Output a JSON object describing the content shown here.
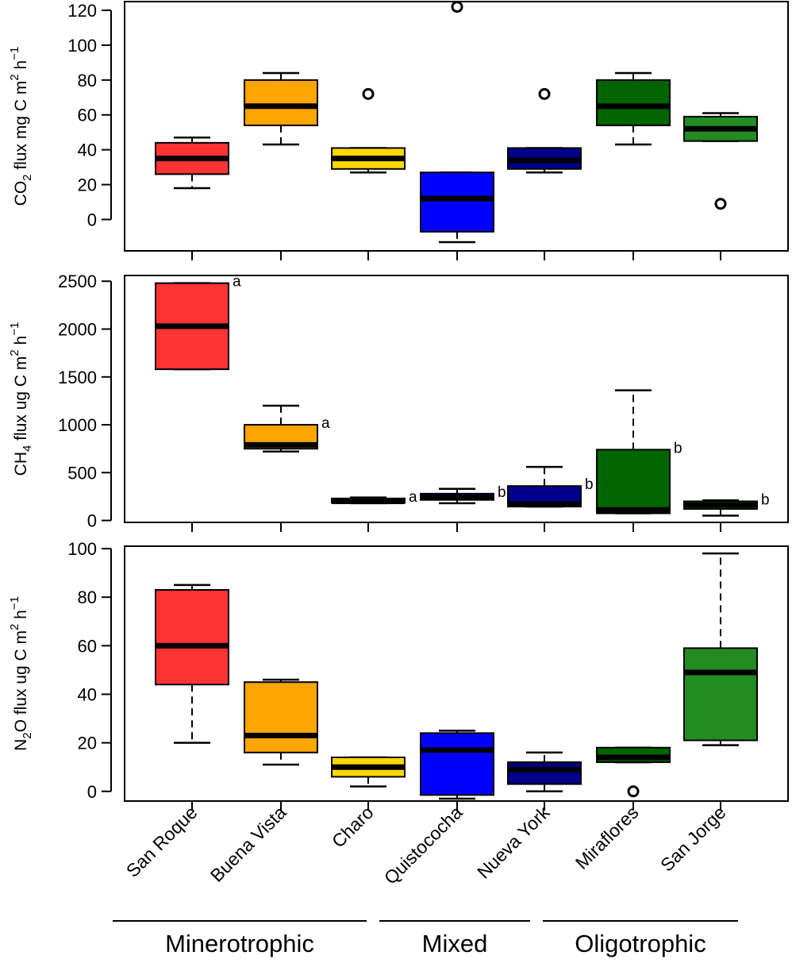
{
  "chart_data": {
    "type": "boxplot",
    "categories": [
      "San Roque",
      "Buena Vista",
      "Charo",
      "Quistococha",
      "Nueva York",
      "Miraflores",
      "San Jorge"
    ],
    "colors": [
      "#ff3333",
      "#ffa500",
      "#ffd700",
      "#0000ff",
      "#00008b",
      "#006400",
      "#228b22"
    ],
    "groups": [
      {
        "label": "Minerotrophic",
        "from": 0,
        "to": 2
      },
      {
        "label": "Mixed",
        "from": 3,
        "to": 4
      },
      {
        "label": "Oligotrophic",
        "from": 5,
        "to": 6
      }
    ],
    "panels": [
      {
        "id": "co2",
        "ylabel_pre": "CO",
        "ylabel_sub": "2",
        "ylabel_post": " flux mg C m",
        "ylabel_sup": "2",
        "ylabel_tail": " h",
        "ylabel_sup2": "−1",
        "ylim": [
          -18,
          125
        ],
        "yticks": [
          "0",
          "20",
          "40",
          "60",
          "80",
          "100",
          "120"
        ],
        "boxes": [
          {
            "wlo": 18,
            "q1": 26,
            "med": 35,
            "q3": 44,
            "whi": 47,
            "out": []
          },
          {
            "wlo": 43,
            "q1": 54,
            "med": 65,
            "q3": 80,
            "whi": 84,
            "out": []
          },
          {
            "wlo": 27,
            "q1": 29,
            "med": 35,
            "q3": 41,
            "whi": 41,
            "out": [
              72
            ]
          },
          {
            "wlo": -13,
            "q1": -7,
            "med": 12,
            "q3": 27,
            "whi": 27,
            "out": [
              122
            ]
          },
          {
            "wlo": 27,
            "q1": 29,
            "med": 34,
            "q3": 41,
            "whi": 41,
            "out": [
              72
            ]
          },
          {
            "wlo": 43,
            "q1": 54,
            "med": 65,
            "q3": 80,
            "whi": 84,
            "out": []
          },
          {
            "wlo": 45,
            "q1": 45,
            "med": 52,
            "q3": 59,
            "whi": 61,
            "out": [
              9
            ]
          }
        ],
        "sig": [
          "",
          "",
          "",
          "",
          "",
          "",
          ""
        ]
      },
      {
        "id": "ch4",
        "ylabel_pre": "CH",
        "ylabel_sub": "4",
        "ylabel_post": " flux ug C m",
        "ylabel_sup": "2",
        "ylabel_tail": " h",
        "ylabel_sup2": "−1",
        "ylim": [
          -20,
          2560
        ],
        "yticks": [
          "0",
          "500",
          "1000",
          "1500",
          "2000",
          "2500"
        ],
        "boxes": [
          {
            "wlo": 1580,
            "q1": 1580,
            "med": 2030,
            "q3": 2480,
            "whi": 2480,
            "out": []
          },
          {
            "wlo": 720,
            "q1": 750,
            "med": 790,
            "q3": 1000,
            "whi": 1200,
            "out": []
          },
          {
            "wlo": 180,
            "q1": 185,
            "med": 200,
            "q3": 230,
            "whi": 240,
            "out": []
          },
          {
            "wlo": 180,
            "q1": 215,
            "med": 240,
            "q3": 280,
            "whi": 330,
            "out": []
          },
          {
            "wlo": 145,
            "q1": 145,
            "med": 170,
            "q3": 360,
            "whi": 560,
            "out": []
          },
          {
            "wlo": 75,
            "q1": 75,
            "med": 110,
            "q3": 740,
            "whi": 1360,
            "out": []
          },
          {
            "wlo": 50,
            "q1": 120,
            "med": 160,
            "q3": 200,
            "whi": 210,
            "out": []
          }
        ],
        "sig": [
          "a",
          "a",
          "a",
          "b",
          "b",
          "b",
          "b"
        ]
      },
      {
        "id": "n2o",
        "ylabel_pre": "N",
        "ylabel_sub": "2",
        "ylabel_post": "O flux ug C m",
        "ylabel_sup": "2",
        "ylabel_tail": " h",
        "ylabel_sup2": "−1",
        "ylim": [
          -4,
          101
        ],
        "yticks": [
          "0",
          "20",
          "40",
          "60",
          "80",
          "100"
        ],
        "boxes": [
          {
            "wlo": 20,
            "q1": 44,
            "med": 60,
            "q3": 83,
            "whi": 85,
            "out": []
          },
          {
            "wlo": 11,
            "q1": 16,
            "med": 23,
            "q3": 45,
            "whi": 46,
            "out": []
          },
          {
            "wlo": 2,
            "q1": 6,
            "med": 10,
            "q3": 14,
            "whi": 14,
            "out": []
          },
          {
            "wlo": -3,
            "q1": -1.5,
            "med": 17,
            "q3": 24,
            "whi": 25,
            "out": []
          },
          {
            "wlo": 0,
            "q1": 3,
            "med": 9,
            "q3": 12,
            "whi": 16,
            "out": []
          },
          {
            "wlo": 12,
            "q1": 12,
            "med": 14,
            "q3": 18,
            "whi": 18,
            "out": [
              0
            ]
          },
          {
            "wlo": 19,
            "q1": 21,
            "med": 49,
            "q3": 59,
            "whi": 98,
            "out": []
          }
        ],
        "sig": [
          "",
          "",
          "",
          "",
          "",
          "",
          ""
        ]
      }
    ]
  }
}
